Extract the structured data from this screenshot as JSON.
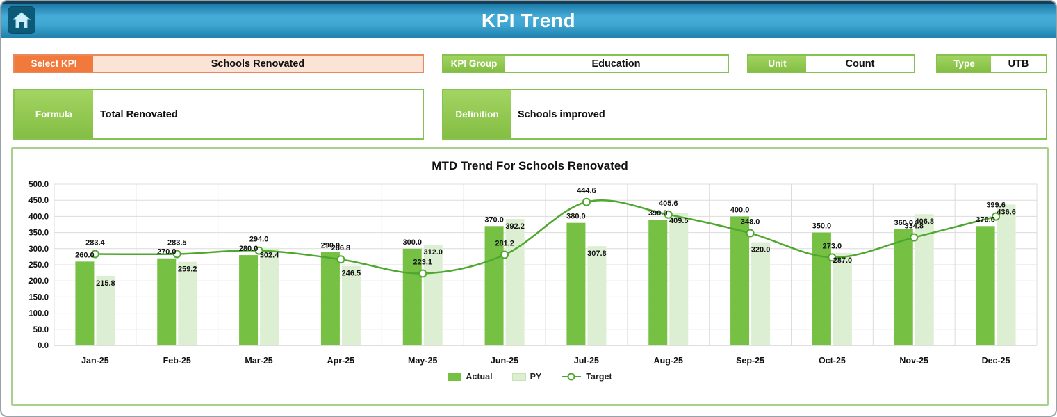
{
  "header": {
    "title": "KPI Trend"
  },
  "filters": {
    "select_kpi": {
      "label": "Select KPI",
      "value": "Schools Renovated"
    },
    "kpi_group": {
      "label": "KPI Group",
      "value": "Education"
    },
    "unit": {
      "label": "Unit",
      "value": "Count"
    },
    "type": {
      "label": "Type",
      "value": "UTB"
    },
    "formula": {
      "label": "Formula",
      "value": "Total Renovated"
    },
    "definition": {
      "label": "Definition",
      "value": "Schools improved"
    }
  },
  "chart_data": {
    "type": "bar",
    "title": "MTD Trend For Schools Renovated",
    "categories": [
      "Jan-25",
      "Feb-25",
      "Mar-25",
      "Apr-25",
      "May-25",
      "Jun-25",
      "Jul-25",
      "Aug-25",
      "Sep-25",
      "Oct-25",
      "Nov-25",
      "Dec-25"
    ],
    "series": [
      {
        "name": "Actual",
        "type": "bar",
        "color": "#76c043",
        "values": [
          260.0,
          270.0,
          280.0,
          290.0,
          300.0,
          370.0,
          380.0,
          390.0,
          400.0,
          350.0,
          360.0,
          370.0
        ]
      },
      {
        "name": "PY",
        "type": "bar",
        "color": "#ddefd2",
        "values": [
          215.8,
          259.2,
          302.4,
          246.5,
          312.0,
          392.2,
          307.8,
          409.5,
          320.0,
          287.0,
          406.8,
          436.6
        ]
      },
      {
        "name": "Target",
        "type": "line",
        "color": "#4ea72e",
        "values": [
          283.4,
          283.5,
          294.0,
          266.8,
          223.1,
          281.2,
          444.6,
          405.6,
          348.0,
          273.0,
          334.8,
          399.6
        ]
      }
    ],
    "ylim": [
      0,
      500
    ],
    "ytick_step": 50,
    "grid": true,
    "legend_position": "bottom"
  }
}
